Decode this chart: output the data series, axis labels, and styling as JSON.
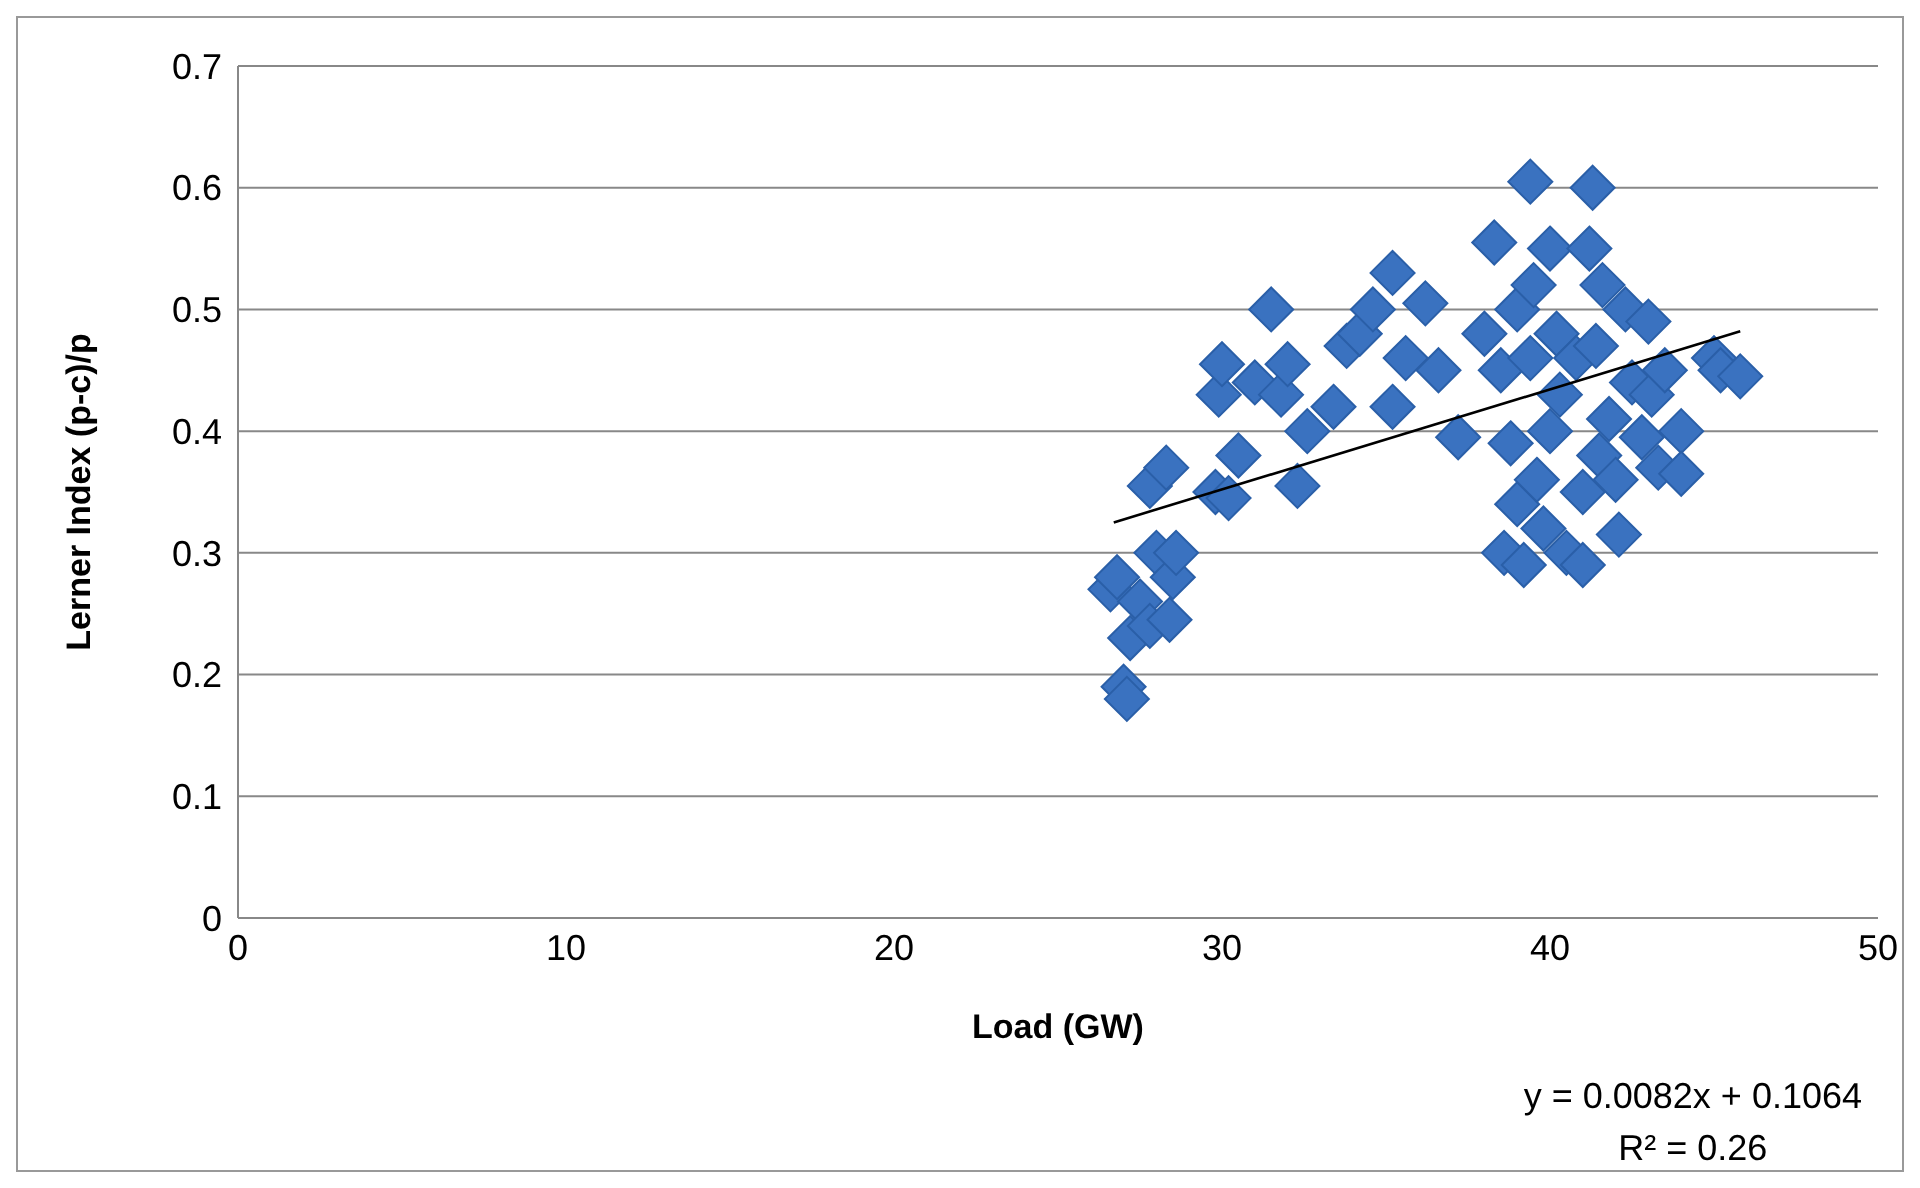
{
  "chart_data": {
    "type": "scatter",
    "xlabel": "Load (GW)",
    "ylabel": "Lerner Index (p-c)/p",
    "xlim": [
      0,
      50
    ],
    "xticks": [
      0,
      10,
      20,
      30,
      40,
      50
    ],
    "ylim": [
      0,
      0.7
    ],
    "yticks": [
      0,
      0.1,
      0.2,
      0.3,
      0.4,
      0.5,
      0.6,
      0.7
    ],
    "grid": "y",
    "legend": false,
    "marker": "diamond",
    "annotations": [
      "y = 0.0082x + 0.1064",
      "R² = 0.26"
    ],
    "series": [
      {
        "type": "scatter",
        "color": "#3a72c0",
        "x": [
          26.6,
          26.8,
          27.0,
          27.1,
          27.2,
          27.5,
          27.8,
          27.8,
          28.0,
          28.3,
          28.4,
          28.5,
          28.6,
          29.8,
          29.9,
          30.0,
          30.2,
          30.5,
          31.0,
          31.5,
          31.8,
          32.0,
          32.3,
          32.6,
          33.4,
          33.8,
          34.2,
          34.6,
          35.2,
          35.2,
          35.6,
          36.2,
          36.6,
          37.2,
          38.0,
          38.3,
          38.5,
          38.6,
          38.8,
          39.0,
          39.0,
          39.2,
          39.4,
          39.4,
          39.5,
          39.6,
          39.8,
          40.0,
          40.0,
          40.2,
          40.3,
          40.5,
          40.8,
          41.0,
          41.0,
          41.2,
          41.3,
          41.4,
          41.5,
          41.6,
          41.8,
          42.0,
          42.1,
          42.3,
          42.5,
          42.8,
          43.0,
          43.1,
          43.3,
          43.5,
          44.0,
          44.0,
          45.0,
          45.2,
          45.8
        ],
        "values": [
          0.27,
          0.28,
          0.19,
          0.18,
          0.23,
          0.26,
          0.24,
          0.355,
          0.3,
          0.37,
          0.245,
          0.28,
          0.3,
          0.35,
          0.43,
          0.455,
          0.345,
          0.38,
          0.44,
          0.5,
          0.43,
          0.455,
          0.355,
          0.4,
          0.42,
          0.47,
          0.48,
          0.5,
          0.53,
          0.42,
          0.46,
          0.505,
          0.45,
          0.395,
          0.48,
          0.555,
          0.45,
          0.3,
          0.39,
          0.34,
          0.5,
          0.29,
          0.605,
          0.46,
          0.52,
          0.36,
          0.32,
          0.55,
          0.4,
          0.48,
          0.43,
          0.3,
          0.46,
          0.29,
          0.35,
          0.55,
          0.6,
          0.47,
          0.38,
          0.52,
          0.41,
          0.36,
          0.315,
          0.5,
          0.44,
          0.395,
          0.49,
          0.43,
          0.37,
          0.45,
          0.4,
          0.365,
          0.46,
          0.45,
          0.445
        ]
      },
      {
        "type": "line",
        "color": "#000000",
        "marker": "none",
        "x": [
          26.7,
          45.8
        ],
        "values": [
          0.325,
          0.482
        ]
      }
    ]
  }
}
